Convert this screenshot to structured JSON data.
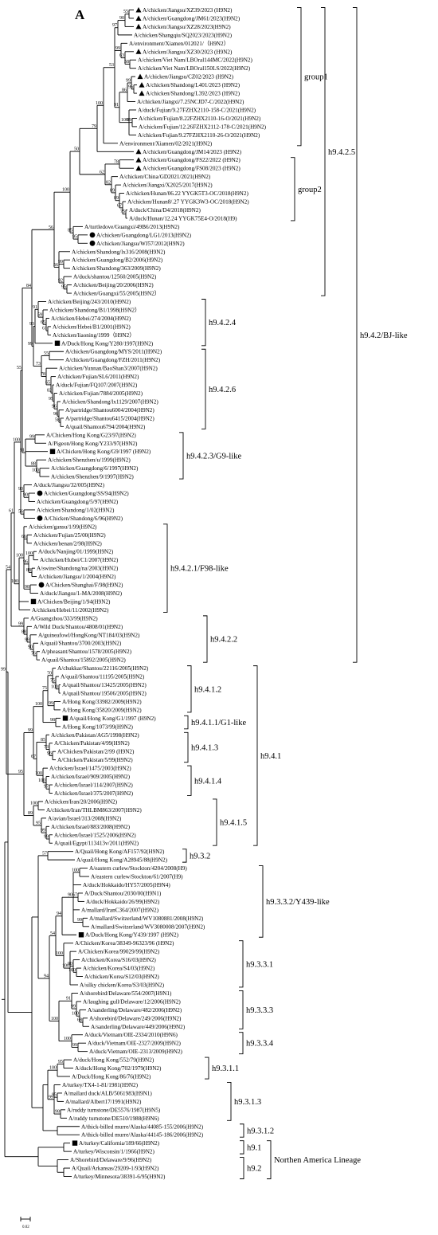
{
  "panel_letter": "A",
  "scale_label": "0.02",
  "groups": [
    {
      "label": "group1"
    },
    {
      "label": "group2"
    },
    {
      "label": "h9.4.2.5"
    },
    {
      "label": "h9.4.2.4"
    },
    {
      "label": "h9.4.2.6"
    },
    {
      "label": "h9.4.2.3/G9-like"
    },
    {
      "label": "h9.4.2.1/F98-like"
    },
    {
      "label": "h9.4.2.2"
    },
    {
      "label": "h9.4.2/BJ-like"
    },
    {
      "label": "h9.4.1.2"
    },
    {
      "label": "h9.4.1.1/G1-like"
    },
    {
      "label": "h9.4.1.3"
    },
    {
      "label": "h9.4.1.4"
    },
    {
      "label": "h9.4.1.5"
    },
    {
      "label": "h9.4.1"
    },
    {
      "label": "h9.3.2"
    },
    {
      "label": "h9.3.3.2/Y439-like"
    },
    {
      "label": "h9.3.3.1"
    },
    {
      "label": "h9.3.3.3"
    },
    {
      "label": "h9.3.3.4"
    },
    {
      "label": "h9.3.1.1"
    },
    {
      "label": "h9.3.1.3"
    },
    {
      "label": "h9.3.1.2"
    },
    {
      "label": "h9.1"
    },
    {
      "label": "h9.2"
    },
    {
      "label": "Northen America Lineage"
    }
  ],
  "taxa": [
    {
      "name": "A/chicken/Jiangsu/XZ39/2023 (H9N2)",
      "marker": "triangle"
    },
    {
      "name": "A/chicken/Guangdong/JM61/2023(H9N2)",
      "marker": "triangle"
    },
    {
      "name": "A/chicken/Jiangsu/XZ28/2023(H9N2)",
      "marker": "triangle"
    },
    {
      "name": "A/chicken/Shangqiu/SQ2023/2023(H9N2)",
      "marker": ""
    },
    {
      "name": "A/environment/Xiamen/012021/（H9N2）",
      "marker": ""
    },
    {
      "name": "A/chicken/Jiangsu/XZ30/2023 (H9N2)",
      "marker": "triangle"
    },
    {
      "name": "A/chicken/Viet Nam/LBOral144MC/2022(H9N2)",
      "marker": ""
    },
    {
      "name": "A/chicken/Viet Nam/LBOral150LS/2022(H9N2)",
      "marker": ""
    },
    {
      "name": "A/chicken/Jiangsu/CZ02/2023 (H9N2)",
      "marker": "triangle"
    },
    {
      "name": "A/chicken/Shandong/L401/2023 (H9N2)",
      "marker": "triangle"
    },
    {
      "name": "A/chicken/Shandong/L392/2023 (H9N2)",
      "marker": "triangle"
    },
    {
      "name": "A/chicken/Jiangxi/7.25NCJD7-C/2022(H9N2)",
      "marker": ""
    },
    {
      "name": "A/duck/Fujian/9.27FZHX2110-158-C/2021(H9N2)",
      "marker": ""
    },
    {
      "name": "A/chicken/Fujian/8.22FZHX2110-16-O/2021(H9N2)",
      "marker": ""
    },
    {
      "name": "A/chicken/Fujian/12.26FZHX2112-178-C/2021(H9N2)",
      "marker": ""
    },
    {
      "name": "A/chicken/Fujian/9.27FZHX2110-26-O/2021(H9N2)",
      "marker": ""
    },
    {
      "name": "A/environment/Xiamen/02/2021(H9N2)",
      "marker": ""
    },
    {
      "name": "A/chicken/Guangdong/JM14/2023 (H9N2)",
      "marker": "triangle"
    },
    {
      "name": "A/chicken/Guangdong/FS22/2022 (H9N2)",
      "marker": "triangle"
    },
    {
      "name": "A/chicken/Guangdong/FS08/2023 (H9N2)",
      "marker": "triangle"
    },
    {
      "name": "A/chicken/China/GD2021/2021(H9N2)",
      "marker": ""
    },
    {
      "name": "A/chicken/Jiangxi/X2025/2017(H9N2)",
      "marker": ""
    },
    {
      "name": "A/chicken/Hunan/06.22 YYGK5T3-OC/2018(H9N2)",
      "marker": ""
    },
    {
      "name": "A/chicken/Hunan8/.27 YYGK3W3-OC/2018(H9N2)",
      "marker": ""
    },
    {
      "name": "A/duck/China/D4/2018(H9N2)",
      "marker": ""
    },
    {
      "name": "A/duck/Hunan/12.24 YYGK75E4-O/2018(H9)",
      "marker": ""
    },
    {
      "name": "A/turtledove/Guangxi/49B6/2013(H9N2)",
      "marker": ""
    },
    {
      "name": "A/chicken/Guangdong/LG1/2013(H9N2)",
      "marker": "circle"
    },
    {
      "name": "A/chicken/Jiangsu/WJ57/2012(H9N2)",
      "marker": "circle"
    },
    {
      "name": "A/chicken/Shandong/lx316/2008(H9N2)",
      "marker": ""
    },
    {
      "name": "A/chicken/Guangdong/B2/2006(H9N2)",
      "marker": ""
    },
    {
      "name": "A/chicken/Shandong/363/2009(H9N2)",
      "marker": ""
    },
    {
      "name": "A/duck/shantou/12560/2005(H9N2)",
      "marker": ""
    },
    {
      "name": "A/chicken/Beijing/20/2006(H9N2)",
      "marker": ""
    },
    {
      "name": "A/chicken/Guangxi/55/2005(H9N2）",
      "marker": ""
    },
    {
      "name": "A/chicken/Beijing/243/2010(H9N2)",
      "marker": ""
    },
    {
      "name": "A/chicken/Shandong/B1/1998(H9N2）",
      "marker": ""
    },
    {
      "name": "A/chicken/Hebei/274/2004(H9N2)",
      "marker": ""
    },
    {
      "name": "A/chicken/Hebei/B1/2001(H9N2)",
      "marker": ""
    },
    {
      "name": "A/chicken/liaoning/1999（H9N2）",
      "marker": ""
    },
    {
      "name": "A/Duck/Hong Kong/Y280/1997(H9N2)",
      "marker": "square"
    },
    {
      "name": "A/chicken/Guangdong/MYS/2011(H9N2)",
      "marker": ""
    },
    {
      "name": "A/chicken/Guangdong/FZH/2011(H9N2)",
      "marker": ""
    },
    {
      "name": "A/chicken/Yunnan/BaoShan3/2007(H9N2)",
      "marker": ""
    },
    {
      "name": "A/chicken/Fujian/SL6/2011(H9N2)",
      "marker": ""
    },
    {
      "name": "A/duck/Fujian/FQ107/2007(H9N2)",
      "marker": ""
    },
    {
      "name": "A/chicken/Fujian/7884/2005(H9N2)",
      "marker": ""
    },
    {
      "name": "A/chicken/Shandong/lx1129/2007(H9N2)",
      "marker": ""
    },
    {
      "name": "A/partridge/Shantou6004/2004(H9N2)",
      "marker": ""
    },
    {
      "name": "A/partridge/Shantou6415/2004(H9N2)",
      "marker": ""
    },
    {
      "name": "A/quail/Shantou6794/2004(H9N2)",
      "marker": ""
    },
    {
      "name": "A/Chicken/Hong Kong/G23/97(H9N2)",
      "marker": ""
    },
    {
      "name": "A/Pigeon/Hong Kong/Y233/97(H9N2)",
      "marker": ""
    },
    {
      "name": "A/Chicken/Hong Kong/G9/1997 (H9N2)",
      "marker": "square"
    },
    {
      "name": "A/chicken/Shenzhen/u/1999(H9N2)",
      "marker": ""
    },
    {
      "name": "A/chicken/Guangdong/6/1997(H9N2)",
      "marker": ""
    },
    {
      "name": "A/chicken/Shenzhen/9/1997(H9N2)",
      "marker": ""
    },
    {
      "name": "A/duck/Jiangsu/32/005(H9N2)",
      "marker": ""
    },
    {
      "name": "A/chicken/Guangdong/SS/94(H9N2)",
      "marker": "circle"
    },
    {
      "name": "A/chicken/Guangdong/5/97(H9N2)",
      "marker": ""
    },
    {
      "name": "A/chicken/Shandong/1/02(H9N2)",
      "marker": ""
    },
    {
      "name": "A/Chicken/Shandong/6/96(H9N2)",
      "marker": "circle"
    },
    {
      "name": "A/chicken/gansu/1/99(H9N2)",
      "marker": ""
    },
    {
      "name": "A/chicken/Fujian/25/00(H9N2)",
      "marker": ""
    },
    {
      "name": "A/chicken/henan/2/98(H9N2)",
      "marker": ""
    },
    {
      "name": "A/duck/Nanjing/01/1999(H9N2)",
      "marker": ""
    },
    {
      "name": "A/chicken/Hubei/C1/2007(H9N2)",
      "marker": ""
    },
    {
      "name": "A/swine/Shandong/na/2003(H9N2)",
      "marker": ""
    },
    {
      "name": "A/chicken/Jiangsu/1/2004(H9N2)",
      "marker": ""
    },
    {
      "name": "A/Chicken/Shanghai/F/98(H9N2)",
      "marker": "circle"
    },
    {
      "name": "A/duck/Jiangsu/1-MA/2008(H9N2)",
      "marker": ""
    },
    {
      "name": "A/Chicken/Beijing/1/94(H9N2)",
      "marker": "square"
    },
    {
      "name": "A/chicken/Hebei/11/2002(H9N2)",
      "marker": ""
    },
    {
      "name": "A/Guangzhou/333/99(H9N2)",
      "marker": ""
    },
    {
      "name": "A/Wild Duck/Shantou/4808/01(H9N2)",
      "marker": ""
    },
    {
      "name": "A/guineafowl/HongKong/NT184/03(H9N2)",
      "marker": ""
    },
    {
      "name": "A/quail/Shantou/3700/2003(H9N2)",
      "marker": ""
    },
    {
      "name": "A/pheasant/Shantou/1578/2005(H9N2)",
      "marker": ""
    },
    {
      "name": "A/quail/Shantou/15892/2005(H9N2)",
      "marker": ""
    },
    {
      "name": "A/chukkar/Shantou/22116/2005(H9N2)",
      "marker": ""
    },
    {
      "name": "A/quail/Shantou/11195/2005(H9N2)",
      "marker": ""
    },
    {
      "name": "A/quail/Shantou/13425/2005(H9N2)",
      "marker": ""
    },
    {
      "name": "A/quail/Shantou/19506/2005(H9N2)",
      "marker": ""
    },
    {
      "name": "A/Hong Kong/33982/2009(H9N2)",
      "marker": ""
    },
    {
      "name": "A/Hong Kong/35820/2009(H9N2)",
      "marker": ""
    },
    {
      "name": "A/quail/Hong Kong/G1/1997 (H9N2)",
      "marker": "square"
    },
    {
      "name": "A/Hong Kong/1073/99(H9N2)",
      "marker": ""
    },
    {
      "name": "A/chicken/Pakistan/AG5/1998(H9N2)",
      "marker": ""
    },
    {
      "name": "A/Chicken/Pakistan/4/99(H9N2)",
      "marker": ""
    },
    {
      "name": "A/Chicken/Pakistan/2/99 (H9N2)",
      "marker": ""
    },
    {
      "name": "A/Chicken/Pakistan/5/99(H9N2)",
      "marker": ""
    },
    {
      "name": "A/chicken/Israel/1475/2003(H9N2)",
      "marker": ""
    },
    {
      "name": "A/chicken/Israel/909/2005(H9N2)",
      "marker": ""
    },
    {
      "name": "A/chicken/Israel/114/2007(H9N2)",
      "marker": ""
    },
    {
      "name": "A/chicken/Israel/375/2007(H9N2)",
      "marker": ""
    },
    {
      "name": "A/chicken/Iran/20/2006(H9N2)",
      "marker": ""
    },
    {
      "name": "A/chicken/Iran/THLBM863/2007(H9N2)",
      "marker": ""
    },
    {
      "name": "A/avian/Israel/313/2008(H9N2)",
      "marker": ""
    },
    {
      "name": "A/chicken/Israel/883/2008(H9N2)",
      "marker": ""
    },
    {
      "name": "A/chicken/Israel/1525/2006(H9N2)",
      "marker": ""
    },
    {
      "name": "A/quail/Egypt/113413v/2011(H9N2)",
      "marker": ""
    },
    {
      "name": "A/Quail/Hong Kong/AF157/92(H9N2)",
      "marker": ""
    },
    {
      "name": "A/quail/Hong Kong/A28945/88(H9N2)",
      "marker": ""
    },
    {
      "name": "A/eastern curlew/Stockton/4204/2008(H9)",
      "marker": ""
    },
    {
      "name": "A/eastern curlew/Stockton/61/2007(H9)",
      "marker": ""
    },
    {
      "name": "A/duck/Hokkaido/HY57/2005(H9N4)",
      "marker": ""
    },
    {
      "name": "A/Duck/Shantou/2030/00(H9N1)",
      "marker": ""
    },
    {
      "name": "A/duck/Hokkaido/26/99(H9N2)",
      "marker": ""
    },
    {
      "name": "A/mallard/IranC364/2007(H9N2)",
      "marker": ""
    },
    {
      "name": "A/mallard/Switzerland/WV1080881/2008(H9N2)",
      "marker": ""
    },
    {
      "name": "A/mallard/Switzerland/WV3080008/2007(H9N2)",
      "marker": ""
    },
    {
      "name": "A/Duck/Hong Kong/Y439/1997 (H9N2)",
      "marker": "square"
    },
    {
      "name": "A/Chicken/Korea/38349-96323/96 (H9N2)",
      "marker": ""
    },
    {
      "name": "A/Chicken/Korea/99029/99(H9N2)",
      "marker": ""
    },
    {
      "name": "A/chicken/Korea/S16/03(H9N2)",
      "marker": ""
    },
    {
      "name": "A/chicken/Korea/S4/03(H9N2)",
      "marker": ""
    },
    {
      "name": "A/chicken/Korea/S12/03(H9N2)",
      "marker": ""
    },
    {
      "name": "A/silky chicken/Korea/S3/03(H9N2)",
      "marker": ""
    },
    {
      "name": "A/shorebird/Delaware/554/2007(H9N1)",
      "marker": ""
    },
    {
      "name": "A/laughing gull/Delaware/12/2006(H9N2)",
      "marker": ""
    },
    {
      "name": "A/sanderling/Delaware/482/2006(H9N2)",
      "marker": ""
    },
    {
      "name": "A/shorebird/Delaware/249/2006(H9N2)",
      "marker": ""
    },
    {
      "name": "A/sanderling/Delaware/449/2006(H9N2)",
      "marker": ""
    },
    {
      "name": "A/duck/Vietnam/OIE-2334/2010(H9N6)",
      "marker": ""
    },
    {
      "name": "A/duck/Vietnam/OIE-2327/2009(H9N2)",
      "marker": ""
    },
    {
      "name": "A/duck/Vietnam/OIE-2313/2009(H9N2)",
      "marker": ""
    },
    {
      "name": "A/duck/Hong Kong/552/79(H9N2)",
      "marker": ""
    },
    {
      "name": "A/duck/Hong Kong/702/1979(H9N2)",
      "marker": ""
    },
    {
      "name": "A/Duck/Hong Kong/86/76(H9N2)",
      "marker": ""
    },
    {
      "name": "A/turkey/TX4-1-81/1981(H9N2)",
      "marker": ""
    },
    {
      "name": "A/mallard duck/ALB/5061983(H9N1)",
      "marker": ""
    },
    {
      "name": "A/mallard/Albert17/1991(H9N2)",
      "marker": ""
    },
    {
      "name": "A/ruddy turnstone/DE5576/1987(H9N5)",
      "marker": ""
    },
    {
      "name": "A/ruddy turnstone/DE510/1988(H9N6)",
      "marker": ""
    },
    {
      "name": "A/thick-billed murre/Alaska/44085-155/2006(H9N2)",
      "marker": ""
    },
    {
      "name": "A/thick-billed murre/Alaska/44145-186/2006(H9N2)",
      "marker": ""
    },
    {
      "name": "A/turkey/California/189/66(H9N2)",
      "marker": "square"
    },
    {
      "name": "A/turkey/Wisconsin/1/1966(H9N2)",
      "marker": ""
    },
    {
      "name": "A/Shorebird/Delaware/9/96(H9N2)",
      "marker": ""
    },
    {
      "name": "A/Quail/Arkansas/29209-1/93(H9N2)",
      "marker": ""
    },
    {
      "name": "A/turkey/Minnesota/38391-6/95(H9N2)",
      "marker": ""
    }
  ],
  "bootstrap": {
    "b0": "55",
    "b1": "90",
    "b2": "97",
    "b3": "58",
    "b4": "63",
    "b5": "99",
    "b6": "96",
    "b7": "99",
    "b8": "86",
    "b9": "99",
    "b10": "100",
    "b11": "91",
    "b12": "53",
    "b13": "100",
    "b14": "79",
    "b15": "78",
    "b16": "75",
    "b17": "67",
    "b18": "89",
    "b19": "89",
    "b20": "82",
    "b21": "62",
    "b22": "50",
    "b23": "95",
    "b24": "85",
    "b25": "100",
    "b26": "99",
    "b27": "95",
    "b28": "92",
    "b29": "56",
    "b30": "56",
    "b31": "61",
    "b32": "65",
    "b33": "59",
    "b34": "91",
    "b35": "93",
    "b36": "55",
    "b37": "58",
    "b38": "96",
    "b39": "96",
    "b40": "95",
    "b41": "82",
    "b42": "65",
    "b43": "78",
    "b44": "73",
    "b45": "99",
    "b46": "84",
    "b47": "99",
    "b48": "100",
    "b49": "88",
    "b50": "91",
    "b51": "55",
    "b52": "90",
    "b53": "90",
    "b54": "56",
    "b55": "100",
    "b56": "66",
    "b57": "100",
    "b58": "88",
    "b59": "96",
    "b60": "98",
    "b61": "100",
    "b62": "100",
    "b63": "61",
    "b64": "76",
    "b65": "90",
    "b66": "99",
    "b67": "88",
    "b68": "99",
    "b69": "54",
    "b70": "100",
    "b71": "75",
    "b72": "70",
    "b73": "99",
    "b74": "75",
    "b75": "98",
    "b76": "100",
    "b77": "96",
    "b78": "73",
    "b79": "85",
    "b80": "97",
    "b81": "100",
    "b82": "100",
    "b83": "100",
    "b84": "99",
    "b85": "99",
    "b86": "95",
    "b87": "89",
    "b88": "67",
    "b89": "99",
    "b90": "95",
    "b91": "99",
    "b92": "57",
    "b93": "100",
    "b94": "67",
    "b95": "99",
    "b96": "90",
    "b97": "94",
    "b98": "100",
    "b99": "90",
    "b100": "100",
    "b101": "100",
    "b102": "68",
    "b103": "100",
    "b104": "99",
    "b105": "91",
    "b106": "99",
    "b107": "100",
    "b108": "54",
    "b109": "100",
    "b110": "94",
    "b111": "95",
    "b112": "100",
    "b113": "95",
    "b114": "98",
    "b115": "99"
  }
}
